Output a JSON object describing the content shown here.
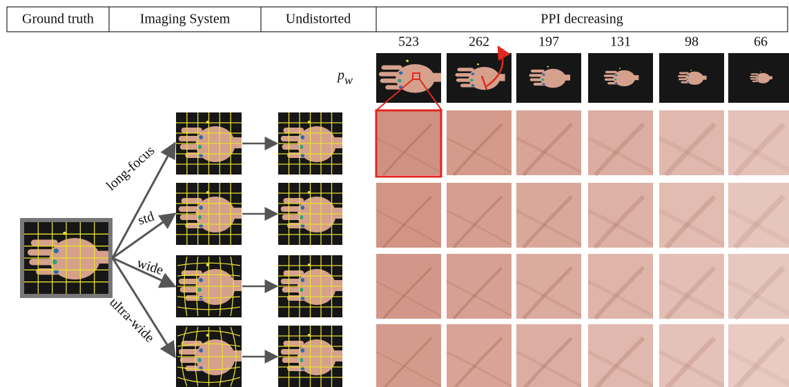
{
  "header": {
    "cells": [
      "Ground truth",
      "Imaging System",
      "Undistorted",
      "PPI decreasing"
    ]
  },
  "ppi": {
    "values": [
      523,
      262,
      197,
      131,
      98,
      66
    ]
  },
  "resolution_label": {
    "main": "p",
    "sub": "w"
  },
  "branches": {
    "labels": [
      "long-focus",
      "std",
      "wide",
      "ultra-wide"
    ]
  }
}
